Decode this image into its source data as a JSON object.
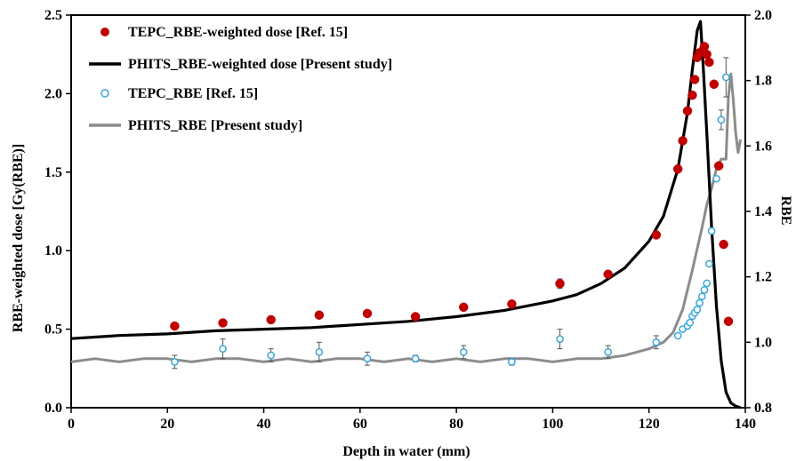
{
  "chart_data": {
    "type": "line",
    "xlabel": "Depth in water (mm)",
    "ylabel": "RBE-weighted dose [Gy(RBE)]",
    "y2label": "RBE",
    "xlim": [
      0,
      140
    ],
    "ylim": [
      0,
      2.5
    ],
    "y2lim": [
      0.8,
      2.0
    ],
    "x_ticks": [
      "0",
      "20",
      "40",
      "60",
      "80",
      "100",
      "120",
      "140"
    ],
    "y_ticks": [
      "0.0",
      "0.5",
      "1.0",
      "1.5",
      "2.0",
      "2.5"
    ],
    "y2_ticks": [
      "0.8",
      "1.0",
      "1.2",
      "1.4",
      "1.6",
      "1.8",
      "2.0"
    ],
    "grid": false,
    "legend_position": "top-left",
    "colors": {
      "tepc_dose": "#c00000",
      "phits_dose": "#000000",
      "tepc_rbe": "#3aa7d8",
      "phits_rbe": "#8c8c8c"
    },
    "series": [
      {
        "name": "TEPC_RBE-weighted dose [Ref. 15]",
        "kind": "scatter-filled",
        "axis": "left",
        "x": [
          21.5,
          31.5,
          41.5,
          51.5,
          61.5,
          71.5,
          81.5,
          91.5,
          101.5,
          111.5,
          121.5,
          126.0,
          127.0,
          128.0,
          129.0,
          129.5,
          130.0,
          130.5,
          131.0,
          131.5,
          132.0,
          132.5,
          133.5,
          134.5,
          135.5,
          136.5
        ],
        "y": [
          0.52,
          0.54,
          0.56,
          0.59,
          0.6,
          0.58,
          0.64,
          0.66,
          0.79,
          0.85,
          1.1,
          1.52,
          1.7,
          1.89,
          1.99,
          2.09,
          2.23,
          2.26,
          2.27,
          2.3,
          2.25,
          2.2,
          2.06,
          1.54,
          1.04,
          0.55
        ],
        "err": [
          0.0,
          0.0,
          0.0,
          0.02,
          0.0,
          0.0,
          0.02,
          0.0,
          0.03,
          0.0,
          0.0,
          0.0,
          0.0,
          0.0,
          0.0,
          0.0,
          0.0,
          0.0,
          0.0,
          0.0,
          0.0,
          0.0,
          0.0,
          0.0,
          0.0,
          0.0
        ]
      },
      {
        "name": "PHITS_RBE-weighted dose [Present study]",
        "kind": "line",
        "axis": "left",
        "x": [
          0,
          10,
          20,
          30,
          40,
          50,
          60,
          70,
          80,
          90,
          100,
          105,
          110,
          115,
          120,
          123,
          126,
          128,
          129,
          130,
          130.7,
          131.3,
          132,
          133,
          134,
          135,
          136,
          137,
          138,
          139
        ],
        "y": [
          0.44,
          0.46,
          0.47,
          0.49,
          0.5,
          0.51,
          0.53,
          0.55,
          0.58,
          0.62,
          0.68,
          0.72,
          0.79,
          0.89,
          1.06,
          1.22,
          1.52,
          1.88,
          2.15,
          2.4,
          2.46,
          2.15,
          1.75,
          1.15,
          0.65,
          0.3,
          0.1,
          0.03,
          0.01,
          0.0
        ]
      },
      {
        "name": "TEPC_RBE [Ref. 15]",
        "kind": "scatter-open",
        "axis": "right",
        "x": [
          21.5,
          31.5,
          41.5,
          51.5,
          61.5,
          71.5,
          81.5,
          91.5,
          101.5,
          111.5,
          121.5,
          126.0,
          127.0,
          128.0,
          128.5,
          129.0,
          129.5,
          130.0,
          130.5,
          131.0,
          131.5,
          132.0,
          132.5,
          133.0,
          134.0,
          135.0,
          136.0
        ],
        "y": [
          0.94,
          0.98,
          0.96,
          0.97,
          0.95,
          0.95,
          0.97,
          0.94,
          1.01,
          0.97,
          1.0,
          1.02,
          1.04,
          1.05,
          1.06,
          1.08,
          1.09,
          1.1,
          1.12,
          1.14,
          1.16,
          1.18,
          1.24,
          1.34,
          1.5,
          1.68,
          1.81
        ],
        "err": [
          0.02,
          0.03,
          0.02,
          0.03,
          0.02,
          0.01,
          0.02,
          0.01,
          0.03,
          0.02,
          0.02,
          0.0,
          0.0,
          0.0,
          0.0,
          0.0,
          0.0,
          0.0,
          0.0,
          0.0,
          0.0,
          0.0,
          0.0,
          0.0,
          0.0,
          0.03,
          0.06
        ]
      },
      {
        "name": "PHITS_RBE [Present study]",
        "kind": "line",
        "axis": "right",
        "x": [
          0,
          5,
          10,
          15,
          20,
          25,
          30,
          35,
          40,
          45,
          50,
          55,
          60,
          65,
          70,
          75,
          80,
          85,
          90,
          95,
          100,
          105,
          110,
          115,
          120,
          123,
          125,
          127,
          129,
          131,
          132,
          133,
          134,
          135,
          136,
          136.5,
          137,
          137.5,
          138,
          138.5,
          139
        ],
        "y": [
          0.94,
          0.95,
          0.94,
          0.95,
          0.95,
          0.94,
          0.95,
          0.95,
          0.94,
          0.95,
          0.94,
          0.95,
          0.95,
          0.94,
          0.95,
          0.94,
          0.95,
          0.94,
          0.95,
          0.95,
          0.94,
          0.95,
          0.95,
          0.96,
          0.98,
          1.0,
          1.03,
          1.1,
          1.22,
          1.35,
          1.42,
          1.47,
          1.53,
          1.56,
          1.56,
          1.75,
          1.82,
          1.74,
          1.64,
          1.58,
          1.62
        ]
      }
    ]
  }
}
